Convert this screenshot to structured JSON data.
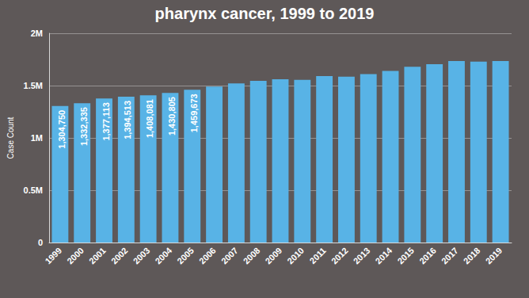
{
  "chart_data": {
    "type": "bar",
    "title": "pharynx cancer, 1999 to 2019",
    "y_label": "Case Count",
    "categories": [
      "1999",
      "2000",
      "2001",
      "2002",
      "2003",
      "2004",
      "2005",
      "2006",
      "2007",
      "2008",
      "2009",
      "2010",
      "2011",
      "2012",
      "2013",
      "2014",
      "2015",
      "2016",
      "2017",
      "2018",
      "2019"
    ],
    "values": [
      1304750,
      1332335,
      1377113,
      1394513,
      1408081,
      1430805,
      1459673,
      1490000,
      1520000,
      1545000,
      1560000,
      1555000,
      1590000,
      1585000,
      1610000,
      1640000,
      1680000,
      1705000,
      1735000,
      1730000,
      1735000
    ],
    "value_labels": [
      "1,304,750",
      "1,332,335",
      "1,377,113",
      "1,394,513",
      "1,408,081",
      "1,430,805",
      "1,459,673",
      null,
      null,
      null,
      null,
      null,
      null,
      null,
      null,
      null,
      null,
      null,
      null,
      null,
      null
    ],
    "data_labels": true,
    "color": "#58b3e6",
    "ylim": [
      0,
      2000000
    ],
    "yticks": [
      {
        "value": 0,
        "label": "0"
      },
      {
        "value": 500000,
        "label": "0.5M"
      },
      {
        "value": 1000000,
        "label": "1M"
      },
      {
        "value": 1500000,
        "label": "1.5M"
      },
      {
        "value": 2000000,
        "label": "2M"
      }
    ],
    "grid": true
  }
}
